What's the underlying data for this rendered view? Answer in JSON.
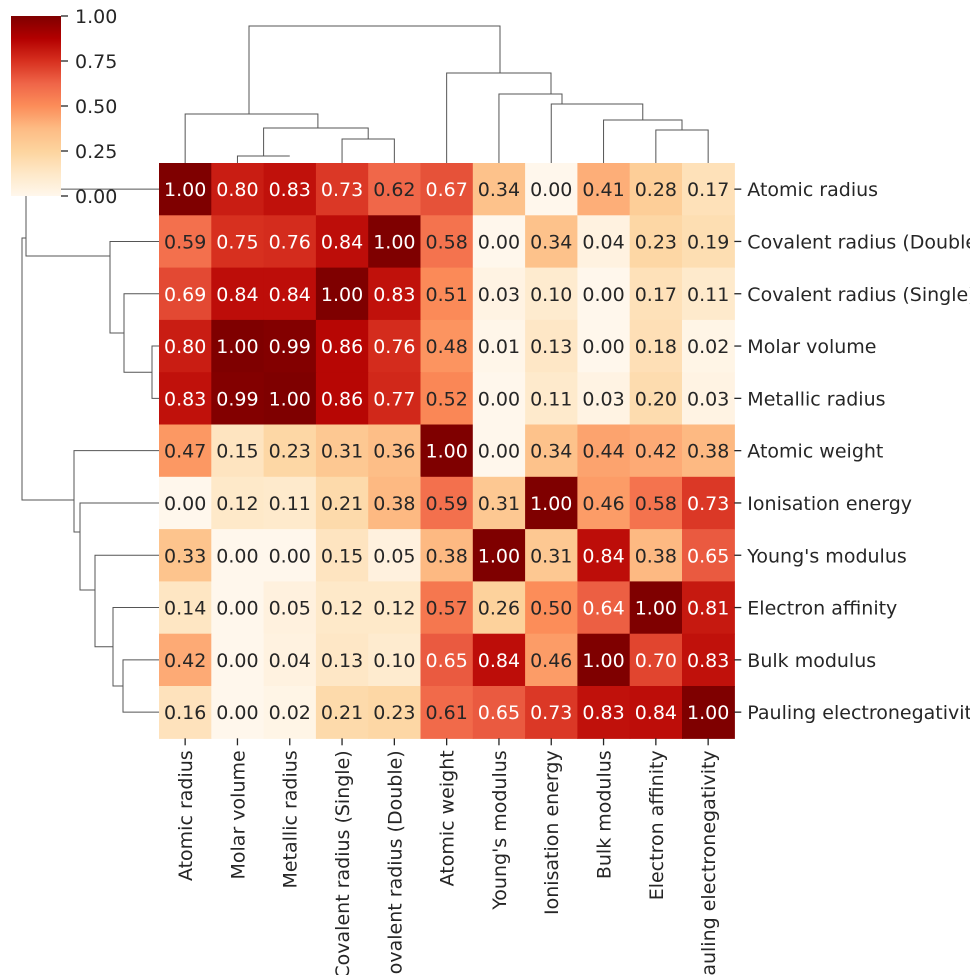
{
  "chart_data": {
    "type": "heatmap",
    "title": "",
    "xlabel": "",
    "ylabel": "",
    "rows": [
      "Atomic radius",
      "Covalent radius (Double)",
      "Covalent radius (Single)",
      "Molar volume",
      "Metallic radius",
      "Atomic weight",
      "Ionisation energy",
      "Young's modulus",
      "Electron affinity",
      "Bulk modulus",
      "Pauling electronegativity"
    ],
    "columns": [
      "Atomic radius",
      "Molar volume",
      "Metallic radius",
      "Covalent radius (Single)",
      "Covalent radius (Double)",
      "Atomic weight",
      "Young's modulus",
      "Ionisation energy",
      "Bulk modulus",
      "Electron affinity",
      "Pauling electronegativity"
    ],
    "values": [
      [
        1.0,
        0.8,
        0.83,
        0.73,
        0.62,
        0.67,
        0.34,
        0.0,
        0.41,
        0.28,
        0.17
      ],
      [
        0.59,
        0.75,
        0.76,
        0.84,
        1.0,
        0.58,
        0.0,
        0.34,
        0.04,
        0.23,
        0.19
      ],
      [
        0.69,
        0.84,
        0.84,
        1.0,
        0.83,
        0.51,
        0.03,
        0.1,
        0.0,
        0.17,
        0.11
      ],
      [
        0.8,
        1.0,
        0.99,
        0.86,
        0.76,
        0.48,
        0.01,
        0.13,
        0.0,
        0.18,
        0.02
      ],
      [
        0.83,
        0.99,
        1.0,
        0.86,
        0.77,
        0.52,
        0.0,
        0.11,
        0.03,
        0.2,
        0.03
      ],
      [
        0.47,
        0.15,
        0.23,
        0.31,
        0.36,
        1.0,
        0.0,
        0.34,
        0.44,
        0.42,
        0.38
      ],
      [
        0.0,
        0.12,
        0.11,
        0.21,
        0.38,
        0.59,
        0.31,
        1.0,
        0.46,
        0.58,
        0.73
      ],
      [
        0.33,
        0.0,
        0.0,
        0.15,
        0.05,
        0.38,
        1.0,
        0.31,
        0.84,
        0.38,
        0.65
      ],
      [
        0.14,
        0.0,
        0.05,
        0.12,
        0.12,
        0.57,
        0.26,
        0.5,
        0.64,
        1.0,
        0.81
      ],
      [
        0.42,
        0.0,
        0.04,
        0.13,
        0.1,
        0.65,
        0.84,
        0.46,
        1.0,
        0.7,
        0.83
      ],
      [
        0.16,
        0.0,
        0.02,
        0.21,
        0.23,
        0.61,
        0.65,
        0.73,
        0.83,
        0.84,
        1.0
      ]
    ],
    "value_format": "0.00",
    "colorbar": {
      "colormap": "OrRd",
      "vmin": 0.0,
      "vmax": 1.0,
      "ticks": [
        "0.00",
        "0.25",
        "0.50",
        "0.75",
        "1.00"
      ],
      "colors": [
        "#fff7ec",
        "#fee8c8",
        "#fdd49e",
        "#fdbb84",
        "#fc8d59",
        "#ef6548",
        "#d7301f",
        "#b30000",
        "#7f0000"
      ]
    },
    "dendrograms": [
      "top",
      "left"
    ],
    "grid": false
  }
}
